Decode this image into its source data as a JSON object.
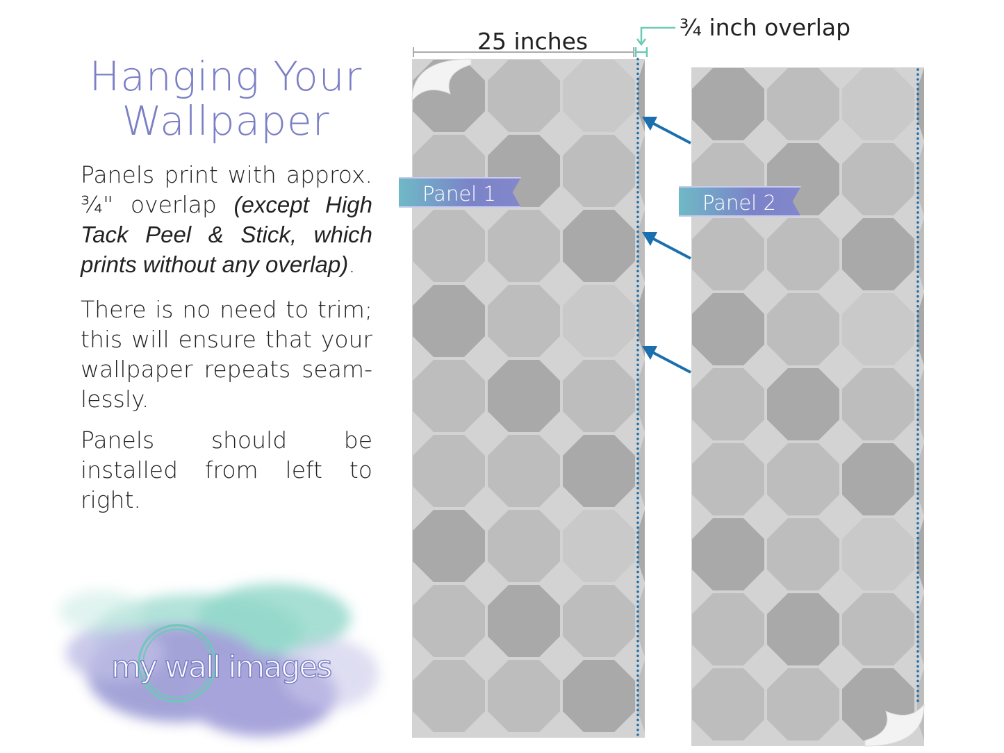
{
  "heading": {
    "line1": "Hanging Your",
    "line2": "Wallpaper"
  },
  "paragraphs": {
    "p1_plain": "Panels print with approx. ¾\" overlap ",
    "p1_italic": "(except High Tack Peel & Stick, which prints without any overlap)",
    "p1_end": ".",
    "p2": "There is no need to trim; this will ensure that your wallpaper repeats seam-lessly.",
    "p3": "Panels should be installed from left to right."
  },
  "diagram": {
    "width_label": "25 inches",
    "overlap_label": "¾ inch overlap",
    "panels": [
      {
        "label": "Panel 1"
      },
      {
        "label": "Panel 2"
      }
    ]
  },
  "logo": {
    "text": "my wall images"
  },
  "colors": {
    "brand_purple": "#7b7fc4",
    "brand_teal": "#6cc9b6",
    "arrow_blue": "#1a6fae",
    "tile_dark": "#a9a9a9",
    "tile_mid": "#bdbdbd",
    "tile_light": "#c9c9c9",
    "grout": "#d3d3d3"
  }
}
